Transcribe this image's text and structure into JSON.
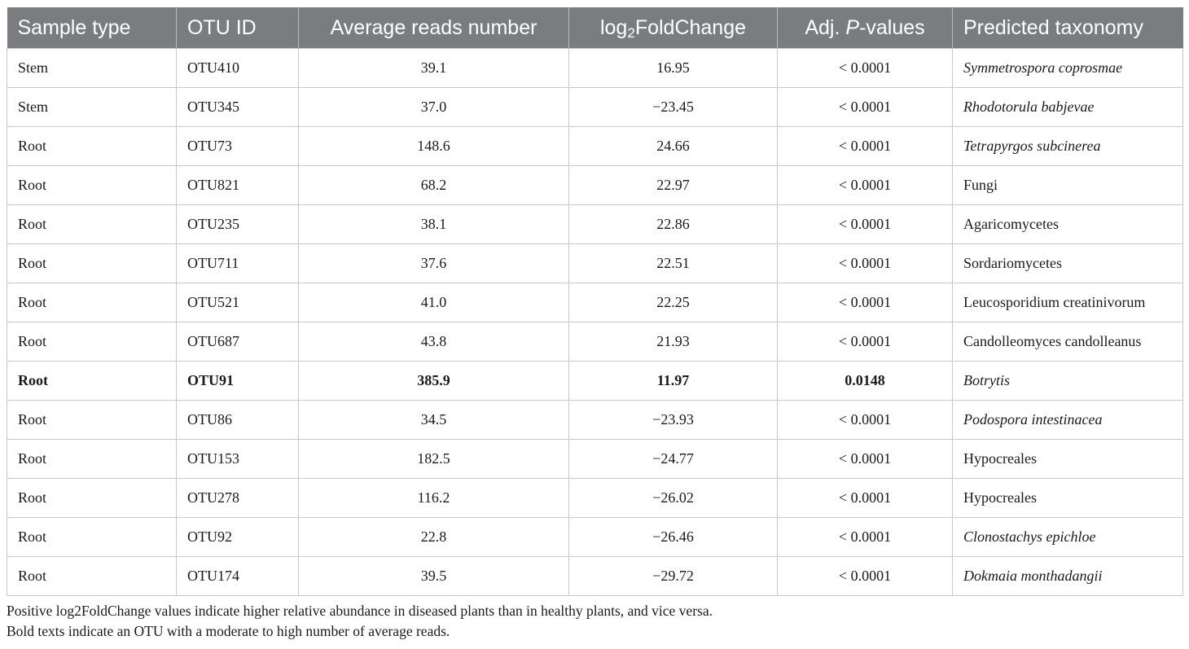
{
  "table": {
    "headers": {
      "sample_type": "Sample type",
      "otu_id": "OTU ID",
      "average_reads": "Average reads number",
      "log2fc_prefix": "log",
      "log2fc_sub": "2",
      "log2fc_suffix": "FoldChange",
      "adjp_prefix": "Adj. ",
      "adjp_italic": "P",
      "adjp_suffix": "-values",
      "taxonomy": "Predicted taxonomy"
    },
    "rows": [
      {
        "sample_type": "Stem",
        "otu_id": "OTU410",
        "average_reads": "39.1",
        "log2fc": "16.95",
        "adj_p": "< 0.0001",
        "taxonomy": "Symmetrospora coprosmae",
        "italic": true,
        "bold": false
      },
      {
        "sample_type": "Stem",
        "otu_id": "OTU345",
        "average_reads": "37.0",
        "log2fc": "−23.45",
        "adj_p": "< 0.0001",
        "taxonomy": "Rhodotorula babjevae",
        "italic": true,
        "bold": false
      },
      {
        "sample_type": "Root",
        "otu_id": "OTU73",
        "average_reads": "148.6",
        "log2fc": "24.66",
        "adj_p": "< 0.0001",
        "taxonomy": "Tetrapyrgos subcinerea",
        "italic": true,
        "bold": false
      },
      {
        "sample_type": "Root",
        "otu_id": "OTU821",
        "average_reads": "68.2",
        "log2fc": "22.97",
        "adj_p": "< 0.0001",
        "taxonomy": "Fungi",
        "italic": false,
        "bold": false
      },
      {
        "sample_type": "Root",
        "otu_id": "OTU235",
        "average_reads": "38.1",
        "log2fc": "22.86",
        "adj_p": "< 0.0001",
        "taxonomy": "Agaricomycetes",
        "italic": false,
        "bold": false
      },
      {
        "sample_type": "Root",
        "otu_id": "OTU711",
        "average_reads": "37.6",
        "log2fc": "22.51",
        "adj_p": "< 0.0001",
        "taxonomy": "Sordariomycetes",
        "italic": false,
        "bold": false
      },
      {
        "sample_type": "Root",
        "otu_id": "OTU521",
        "average_reads": "41.0",
        "log2fc": "22.25",
        "adj_p": "< 0.0001",
        "taxonomy": "Leucosporidium creatinivorum",
        "italic": false,
        "bold": false
      },
      {
        "sample_type": "Root",
        "otu_id": "OTU687",
        "average_reads": "43.8",
        "log2fc": "21.93",
        "adj_p": "< 0.0001",
        "taxonomy": "Candolleomyces candolleanus",
        "italic": false,
        "bold": false
      },
      {
        "sample_type": "Root",
        "otu_id": "OTU91",
        "average_reads": "385.9",
        "log2fc": "11.97",
        "adj_p": "0.0148",
        "taxonomy": "Botrytis",
        "italic": true,
        "bold": true
      },
      {
        "sample_type": "Root",
        "otu_id": "OTU86",
        "average_reads": "34.5",
        "log2fc": "−23.93",
        "adj_p": "< 0.0001",
        "taxonomy": "Podospora intestinacea",
        "italic": true,
        "bold": false
      },
      {
        "sample_type": "Root",
        "otu_id": "OTU153",
        "average_reads": "182.5",
        "log2fc": "−24.77",
        "adj_p": "< 0.0001",
        "taxonomy": "Hypocreales",
        "italic": false,
        "bold": false
      },
      {
        "sample_type": "Root",
        "otu_id": "OTU278",
        "average_reads": "116.2",
        "log2fc": "−26.02",
        "adj_p": "< 0.0001",
        "taxonomy": "Hypocreales",
        "italic": false,
        "bold": false
      },
      {
        "sample_type": "Root",
        "otu_id": "OTU92",
        "average_reads": "22.8",
        "log2fc": "−26.46",
        "adj_p": "< 0.0001",
        "taxonomy": "Clonostachys epichloe",
        "italic": true,
        "bold": false
      },
      {
        "sample_type": "Root",
        "otu_id": "OTU174",
        "average_reads": "39.5",
        "log2fc": "−29.72",
        "adj_p": "< 0.0001",
        "taxonomy": "Dokmaia monthadangii",
        "italic": true,
        "bold": false
      }
    ]
  },
  "notes": [
    "Positive log2FoldChange values indicate higher relative abundance in diseased plants than in healthy plants, and vice versa.",
    "Bold texts indicate an OTU with a moderate to high number of average reads."
  ],
  "colors": {
    "header_background": "#7a7d80",
    "header_text": "#ffffff",
    "grid_line": "#c9c9c9"
  }
}
